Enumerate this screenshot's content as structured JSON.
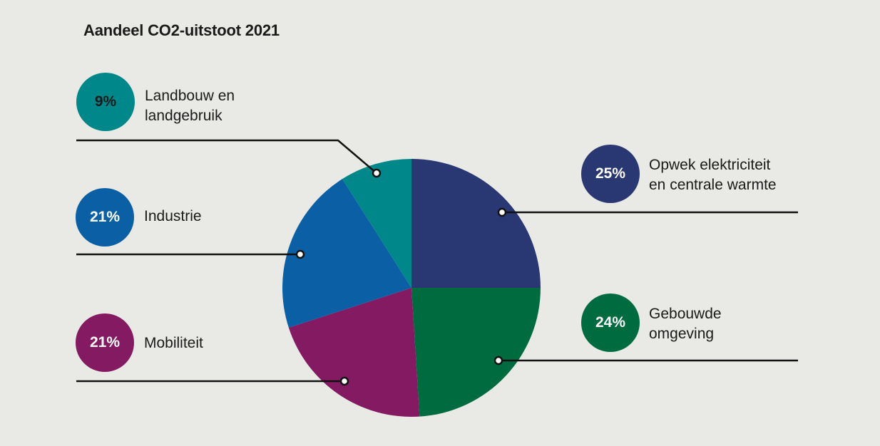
{
  "chart_data": {
    "type": "pie",
    "title": "Aandeel CO2-uitstoot 2021",
    "slices": [
      {
        "label": "Opwek elektriciteit en centrale warmte",
        "value": 25,
        "value_label": "25%",
        "color": "#293773"
      },
      {
        "label": "Gebouwde omgeving",
        "value": 24,
        "value_label": "24%",
        "color": "#006b3e"
      },
      {
        "label": "Mobiliteit",
        "value": 21,
        "value_label": "21%",
        "color": "#841a62"
      },
      {
        "label": "Industrie",
        "value": 21,
        "value_label": "21%",
        "color": "#0b5fa4"
      },
      {
        "label": "Landbouw en landgebruik",
        "value": 9,
        "value_label": "9%",
        "color": "#00878a"
      }
    ]
  },
  "labels": {
    "landbouw": [
      "Landbouw en",
      "landgebruik"
    ],
    "industrie": [
      "Industrie"
    ],
    "mobiliteit": [
      "Mobiliteit"
    ],
    "opwek": [
      "Opwek elektriciteit",
      "en centrale warmte"
    ],
    "gebouwde": [
      "Gebouwde",
      "omgeving"
    ]
  },
  "badge_text_colors": {
    "landbouw": "#1a1a1a",
    "industrie": "#ffffff",
    "mobiliteit": "#ffffff",
    "opwek": "#ffffff",
    "gebouwde": "#ffffff"
  }
}
